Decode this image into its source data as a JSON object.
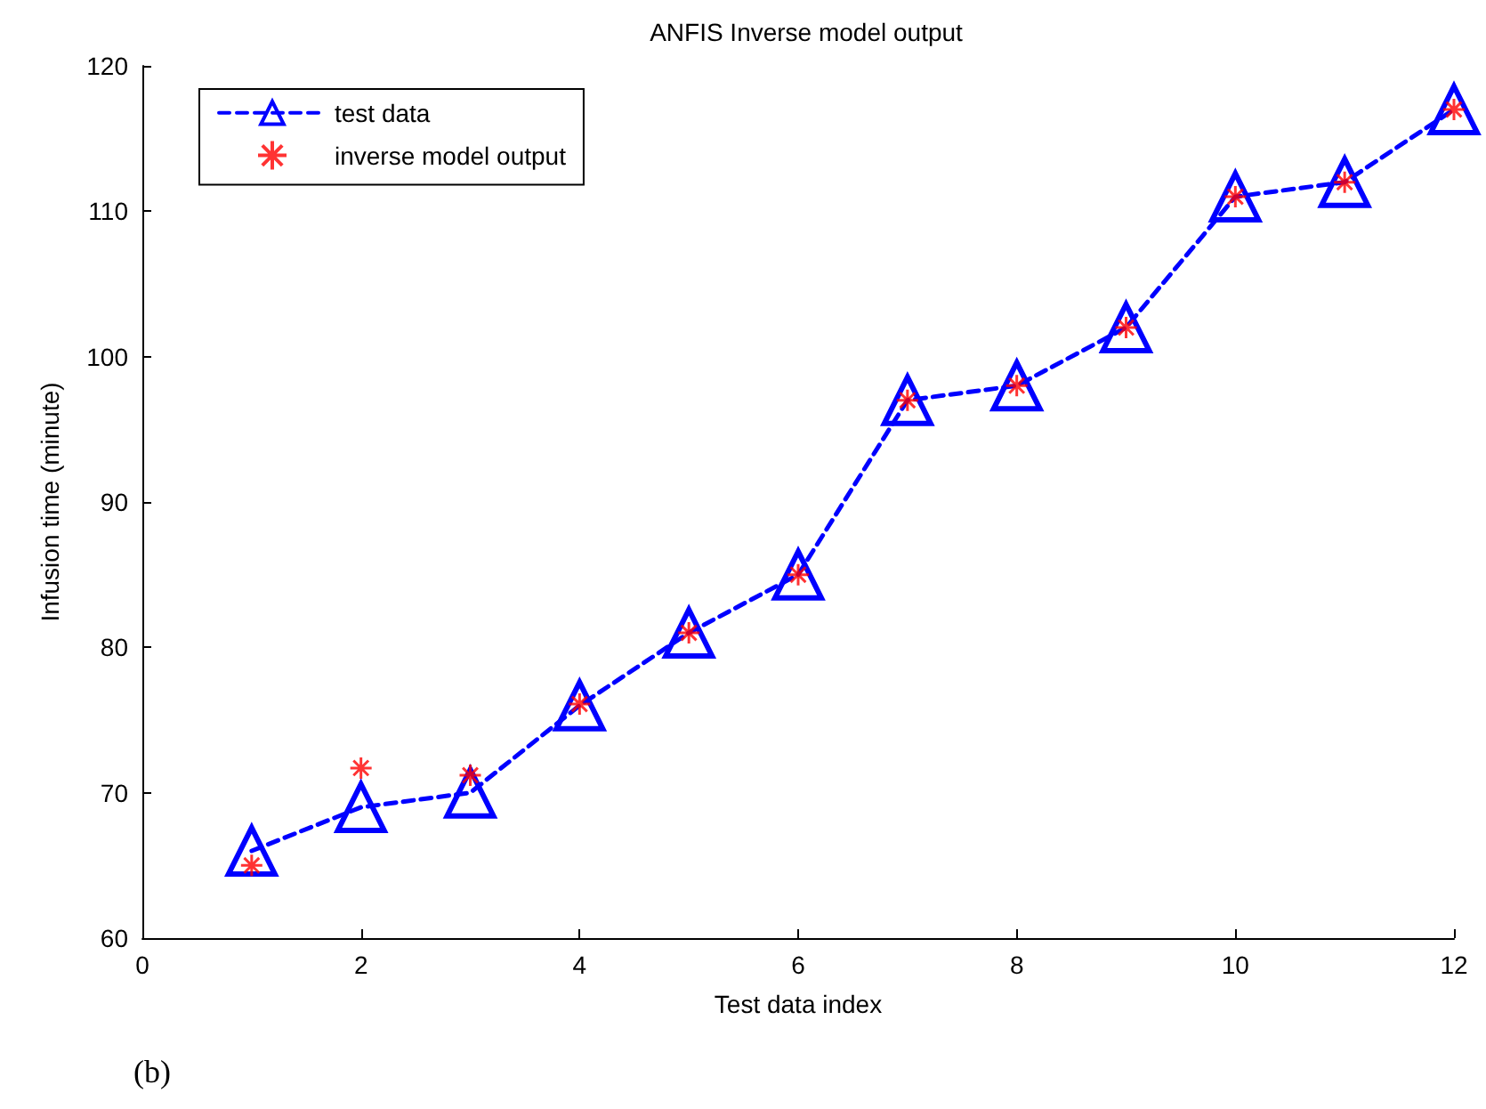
{
  "chart_data": {
    "type": "line",
    "title": "ANFIS Inverse model output",
    "xlabel": "Test data index",
    "ylabel": "Infusion time (minute)",
    "annotations": [
      "(b)"
    ],
    "x": [
      1,
      2,
      3,
      4,
      5,
      6,
      7,
      8,
      9,
      10,
      11,
      12
    ],
    "series": [
      {
        "name": "test data",
        "color": "#0000ff",
        "marker": "triangle",
        "line_style": "dashed",
        "values": [
          66,
          69,
          70,
          76,
          81,
          85,
          97,
          98,
          102,
          111,
          112,
          117
        ]
      },
      {
        "name": "inverse model output",
        "color": "#ff0000",
        "type": "scatter",
        "marker": "cross",
        "values": [
          65,
          71.7,
          71.2,
          76.1,
          81,
          85,
          97,
          98,
          102,
          111,
          112,
          117
        ]
      }
    ],
    "xlim": [
      0,
      12
    ],
    "xticks": [
      0,
      2,
      4,
      6,
      8,
      10,
      12
    ],
    "ylim": [
      60,
      120
    ],
    "yticks": [
      60,
      70,
      80,
      90,
      100,
      110,
      120
    ],
    "grid": false,
    "legend": "top left"
  }
}
